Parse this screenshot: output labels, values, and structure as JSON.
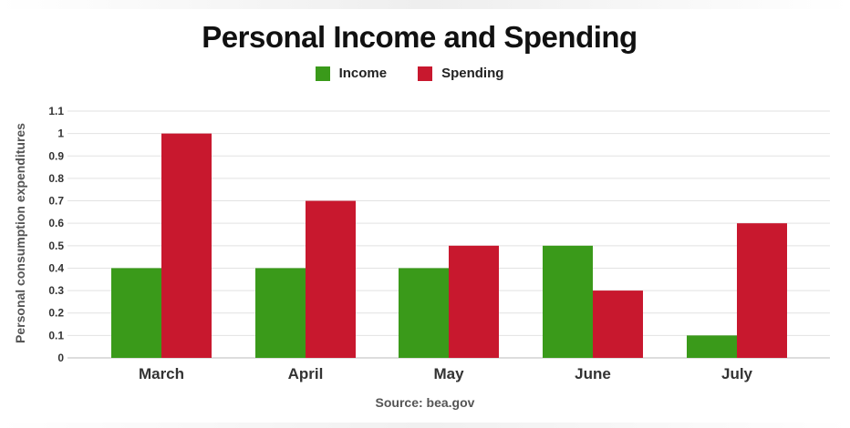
{
  "chart_data": {
    "type": "bar",
    "title": "Personal Income and Spending",
    "ylabel": "Personal consumption expenditures",
    "xlabel": "",
    "source": "Source: bea.gov",
    "categories": [
      "March",
      "April",
      "May",
      "June",
      "July"
    ],
    "series": [
      {
        "name": "Income",
        "color": "#3a9a1a",
        "values": [
          0.4,
          0.4,
          0.4,
          0.5,
          0.1
        ]
      },
      {
        "name": "Spending",
        "color": "#c8182e",
        "values": [
          1.0,
          0.7,
          0.5,
          0.3,
          0.6
        ]
      }
    ],
    "ylim": [
      0,
      1.1
    ],
    "yticks": [
      "0",
      "0.1",
      "0.2",
      "0.3",
      "0.4",
      "0.5",
      "0.6",
      "0.7",
      "0.8",
      "0.9",
      "1",
      "1.1"
    ],
    "grid": true,
    "legend_position": "top-center"
  }
}
